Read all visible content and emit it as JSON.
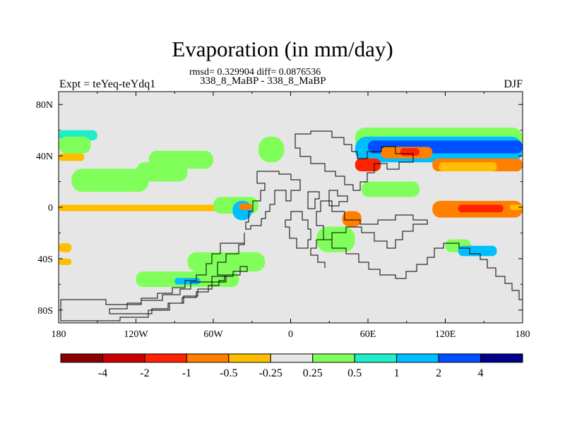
{
  "figure": {
    "title": "Evaporation (in mm/day)",
    "stats_line": "rmsd= 0.329904 diff= 0.0876536",
    "subtitle": "338_8_MaBP - 338_8_MaBP",
    "left_label": "Expt = teYeq-teYdq1",
    "right_label": "DJF"
  },
  "chart_data": {
    "type": "heatmap",
    "title": "Evaporation (in mm/day)",
    "xlabel": "",
    "ylabel": "",
    "xlim": [
      -180,
      180
    ],
    "ylim": [
      -90,
      90
    ],
    "x_ticks": [
      {
        "value": -180,
        "label": "180"
      },
      {
        "value": -120,
        "label": "120W"
      },
      {
        "value": -60,
        "label": "60W"
      },
      {
        "value": 0,
        "label": "0"
      },
      {
        "value": 60,
        "label": "60E"
      },
      {
        "value": 120,
        "label": "120E"
      },
      {
        "value": 180,
        "label": "180"
      }
    ],
    "y_ticks": [
      {
        "value": 80,
        "label": "80N"
      },
      {
        "value": 40,
        "label": "40N"
      },
      {
        "value": 0,
        "label": "0"
      },
      {
        "value": -40,
        "label": "40S"
      },
      {
        "value": -80,
        "label": "80S"
      }
    ],
    "colorbar": {
      "levels": [
        "-4",
        "-2",
        "-1",
        "-0.5",
        "-0.25",
        "0.25",
        "0.5",
        "1",
        "2",
        "4"
      ],
      "colors": [
        "#8b0000",
        "#cc0000",
        "#ff2200",
        "#ff7f00",
        "#ffbf00",
        "#e6e6e6",
        "#80ff5a",
        "#20eec8",
        "#00bfff",
        "#0050ff",
        "#00008b"
      ]
    },
    "background_color": "#e6e6e6",
    "fields": [
      {
        "lon": [
          -180,
          -150
        ],
        "lat": [
          52,
          60
        ],
        "class": 7
      },
      {
        "lon": [
          -180,
          -155
        ],
        "lat": [
          42,
          55
        ],
        "class": 6
      },
      {
        "lon": [
          -110,
          -60
        ],
        "lat": [
          30,
          44
        ],
        "class": 6
      },
      {
        "lon": [
          -170,
          -110
        ],
        "lat": [
          12,
          30
        ],
        "class": 6
      },
      {
        "lon": [
          -120,
          -80
        ],
        "lat": [
          20,
          35
        ],
        "class": 6
      },
      {
        "lon": [
          -25,
          -5
        ],
        "lat": [
          35,
          55
        ],
        "class": 6
      },
      {
        "lon": [
          50,
          180
        ],
        "lat": [
          45,
          62
        ],
        "class": 6
      },
      {
        "lon": [
          50,
          180
        ],
        "lat": [
          35,
          55
        ],
        "class": 8
      },
      {
        "lon": [
          60,
          180
        ],
        "lat": [
          42,
          52
        ],
        "class": 9
      },
      {
        "lon": [
          70,
          110
        ],
        "lat": [
          38,
          47
        ],
        "class": 3
      },
      {
        "lon": [
          85,
          100
        ],
        "lat": [
          40,
          46
        ],
        "class": 2
      },
      {
        "lon": [
          50,
          70
        ],
        "lat": [
          28,
          38
        ],
        "class": 2
      },
      {
        "lon": [
          110,
          180
        ],
        "lat": [
          28,
          38
        ],
        "class": 3
      },
      {
        "lon": [
          115,
          160
        ],
        "lat": [
          28,
          35
        ],
        "class": 4
      },
      {
        "lon": [
          -180,
          -50
        ],
        "lat": [
          -1,
          1
        ],
        "class": 3
      },
      {
        "lon": [
          -180,
          -40
        ],
        "lat": [
          -3,
          2
        ],
        "class": 4
      },
      {
        "lon": [
          -60,
          -25
        ],
        "lat": [
          -5,
          8
        ],
        "class": 6
      },
      {
        "lon": [
          -45,
          -30
        ],
        "lat": [
          -10,
          5
        ],
        "class": 8
      },
      {
        "lon": [
          -40,
          -30
        ],
        "lat": [
          -2,
          3
        ],
        "class": 3
      },
      {
        "lon": [
          110,
          180
        ],
        "lat": [
          -8,
          5
        ],
        "class": 3
      },
      {
        "lon": [
          130,
          165
        ],
        "lat": [
          -4,
          2
        ],
        "class": 2
      },
      {
        "lon": [
          170,
          180
        ],
        "lat": [
          -2,
          2
        ],
        "class": 4
      },
      {
        "lon": [
          40,
          55
        ],
        "lat": [
          -15,
          -3
        ],
        "class": 3
      },
      {
        "lon": [
          55,
          100
        ],
        "lat": [
          8,
          20
        ],
        "class": 6
      },
      {
        "lon": [
          20,
          50
        ],
        "lat": [
          -35,
          -15
        ],
        "class": 6
      },
      {
        "lon": [
          -80,
          -20
        ],
        "lat": [
          -50,
          -35
        ],
        "class": 6
      },
      {
        "lon": [
          -120,
          -40
        ],
        "lat": [
          -62,
          -50
        ],
        "class": 6
      },
      {
        "lon": [
          -90,
          -70
        ],
        "lat": [
          -60,
          -55
        ],
        "class": 8
      },
      {
        "lon": [
          -180,
          -170
        ],
        "lat": [
          -45,
          -40
        ],
        "class": 4
      },
      {
        "lon": [
          -180,
          -170
        ],
        "lat": [
          -35,
          -28
        ],
        "class": 4
      },
      {
        "lon": [
          120,
          140
        ],
        "lat": [
          -35,
          -25
        ],
        "class": 6
      },
      {
        "lon": [
          130,
          160
        ],
        "lat": [
          -38,
          -30
        ],
        "class": 8
      },
      {
        "lon": [
          -180,
          -160
        ],
        "lat": [
          36,
          42
        ],
        "class": 4
      }
    ]
  }
}
